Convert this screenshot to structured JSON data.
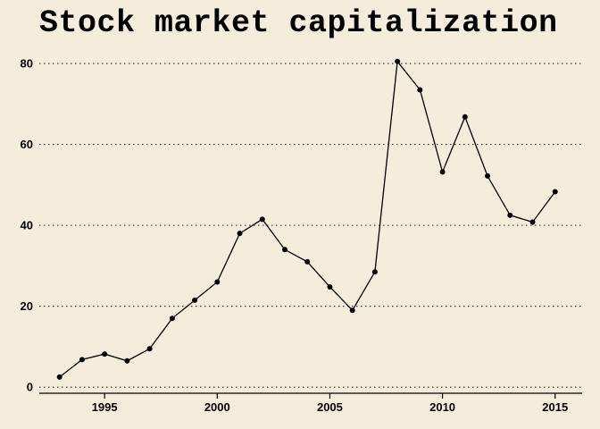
{
  "chart_data": {
    "type": "line",
    "title": "Stock market capitalization",
    "xlabel": "",
    "ylabel": "",
    "xlim": [
      1992.1,
      2016.2
    ],
    "ylim": [
      -1.5,
      82
    ],
    "x_ticks": [
      1995,
      2000,
      2005,
      2010,
      2015
    ],
    "y_ticks": [
      0,
      20,
      40,
      60,
      80
    ],
    "grid": "horizontal dotted",
    "series": [
      {
        "x": [
          1993,
          1994,
          1995,
          1996,
          1997,
          1998,
          1999,
          2000,
          2001,
          2002,
          2003,
          2004,
          2005,
          2006,
          2007,
          2008,
          2009,
          2010,
          2011,
          2012,
          2013,
          2014,
          2015
        ],
        "values": [
          2.5,
          6.8,
          8.2,
          6.5,
          9.5,
          17.0,
          21.5,
          26.0,
          38.0,
          41.5,
          34.0,
          31.0,
          24.8,
          19.0,
          28.5,
          80.5,
          73.5,
          53.2,
          66.8,
          52.2,
          42.5,
          40.8,
          48.3
        ]
      }
    ]
  }
}
